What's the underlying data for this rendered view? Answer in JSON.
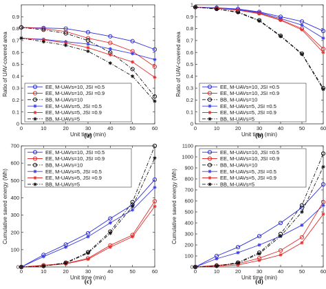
{
  "chart_data": [
    {
      "type": "line",
      "panel_label": "(a)",
      "xlabel": "Unit time (min)",
      "ylabel": "Ratio of UAV-covered area",
      "xlim": [
        0,
        60
      ],
      "ylim": [
        0,
        1
      ],
      "xticks": [
        "0",
        "10",
        "20",
        "30",
        "40",
        "50",
        "60"
      ],
      "yticks": [
        "0",
        "0.1",
        "0.2",
        "0.3",
        "0.4",
        "0.5",
        "0.6",
        "0.7",
        "0.8",
        "0.9"
      ],
      "ytick_values": [
        0,
        0.1,
        0.2,
        0.3,
        0.4,
        0.5,
        0.6,
        0.7,
        0.8,
        0.9
      ],
      "grid": false,
      "legend_position": "bottom-left",
      "x": [
        0,
        10,
        20,
        30,
        40,
        50,
        60
      ],
      "series": [
        {
          "name": "EE, M-UAVs=10, JSI =0.5",
          "values": [
            0.81,
            0.805,
            0.8,
            0.77,
            0.735,
            0.695,
            0.625
          ]
        },
        {
          "name": "EE, M-UAVs=10, JSI =0.9",
          "values": [
            0.81,
            0.8,
            0.775,
            0.72,
            0.68,
            0.61,
            0.48
          ]
        },
        {
          "name": "BB, M-UAVs=10",
          "values": [
            0.81,
            0.79,
            0.76,
            0.7,
            0.6,
            0.46,
            0.23
          ]
        },
        {
          "name": "EE, M-UAVs=5, JSI =0.5",
          "values": [
            0.72,
            0.71,
            0.69,
            0.67,
            0.63,
            0.59,
            0.54
          ]
        },
        {
          "name": "EE, M-UAVs=5, JSI =0.9",
          "values": [
            0.72,
            0.705,
            0.68,
            0.64,
            0.58,
            0.52,
            0.39
          ]
        },
        {
          "name": "BB, M-UAVs=5",
          "values": [
            0.72,
            0.69,
            0.66,
            0.61,
            0.51,
            0.4,
            0.19
          ]
        }
      ]
    },
    {
      "type": "line",
      "panel_label": "(b)",
      "xlabel": "Unit time (min)",
      "ylabel": "Ratio of UAV-covered area",
      "xlim": [
        0,
        60
      ],
      "ylim": [
        0,
        1
      ],
      "xticks": [
        "0",
        "10",
        "20",
        "30",
        "40",
        "50",
        "60"
      ],
      "yticks": [
        "0",
        "0.1",
        "0.2",
        "0.3",
        "0.4",
        "0.5",
        "0.6",
        "0.7",
        "0.8",
        "0.9",
        "1"
      ],
      "ytick_values": [
        0,
        0.1,
        0.2,
        0.3,
        0.4,
        0.5,
        0.6,
        0.7,
        0.8,
        0.9,
        1
      ],
      "grid": false,
      "legend_position": "bottom-left",
      "x": [
        0,
        10,
        20,
        30,
        40,
        50,
        60
      ],
      "series": [
        {
          "name": "EE, M-UAVs=10, JSI =0.5",
          "values": [
            0.98,
            0.975,
            0.965,
            0.94,
            0.9,
            0.86,
            0.78
          ]
        },
        {
          "name": "EE, M-UAVs=10, JSI =0.9",
          "values": [
            0.98,
            0.97,
            0.955,
            0.93,
            0.875,
            0.8,
            0.63
          ]
        },
        {
          "name": "BB, M-UAVs=10",
          "values": [
            0.98,
            0.965,
            0.94,
            0.87,
            0.74,
            0.59,
            0.3
          ]
        },
        {
          "name": "EE, M-UAVs=5, JSI =0.5",
          "values": [
            0.98,
            0.975,
            0.96,
            0.935,
            0.885,
            0.83,
            0.72
          ]
        },
        {
          "name": "EE, M-UAVs=5, JSI =0.9",
          "values": [
            0.98,
            0.97,
            0.955,
            0.925,
            0.87,
            0.79,
            0.6
          ]
        },
        {
          "name": "BB, M-UAVs=5",
          "values": [
            0.98,
            0.965,
            0.935,
            0.865,
            0.735,
            0.585,
            0.29
          ]
        }
      ]
    },
    {
      "type": "line",
      "panel_label": "(c)",
      "xlabel": "Unit time (min)",
      "ylabel": "Cumulative saved energy (Wh)",
      "xlim": [
        0,
        60
      ],
      "ylim": [
        0,
        700
      ],
      "xticks": [
        "0",
        "10",
        "20",
        "30",
        "40",
        "50",
        "60"
      ],
      "yticks": [
        "0",
        "100",
        "200",
        "300",
        "400",
        "500",
        "600",
        "700"
      ],
      "ytick_values": [
        0,
        100,
        200,
        300,
        400,
        500,
        600,
        700
      ],
      "grid": false,
      "legend_position": "top-left",
      "x": [
        0,
        10,
        20,
        30,
        40,
        50,
        60
      ],
      "series": [
        {
          "name": "EE, M-UAVs=10, JSI =0.5",
          "values": [
            0,
            70,
            130,
            195,
            280,
            360,
            505
          ]
        },
        {
          "name": "EE, M-UAVs=10, JSI =0.9",
          "values": [
            0,
            10,
            20,
            50,
            125,
            185,
            380
          ]
        },
        {
          "name": "BB, M-UAVs=10",
          "values": [
            0,
            5,
            25,
            85,
            205,
            375,
            700
          ]
        },
        {
          "name": "EE, M-UAVs=5, JSI =0.5",
          "values": [
            0,
            60,
            115,
            175,
            255,
            330,
            460
          ]
        },
        {
          "name": "EE, M-UAVs=5, JSI =0.9",
          "values": [
            0,
            8,
            18,
            45,
            115,
            175,
            350
          ]
        },
        {
          "name": "BB, M-UAVs=5",
          "values": [
            0,
            5,
            22,
            80,
            195,
            350,
            630
          ]
        }
      ]
    },
    {
      "type": "line",
      "panel_label": "(d)",
      "xlabel": "Unit time (min)",
      "ylabel": "Cumulative saved energy (Wh)",
      "xlim": [
        0,
        60
      ],
      "ylim": [
        0,
        1100
      ],
      "xticks": [
        "0",
        "10",
        "20",
        "30",
        "40",
        "50",
        "60"
      ],
      "yticks": [
        "0",
        "100",
        "200",
        "300",
        "400",
        "500",
        "600",
        "700",
        "800",
        "900",
        "1000",
        "1100"
      ],
      "ytick_values": [
        0,
        100,
        200,
        300,
        400,
        500,
        600,
        700,
        800,
        900,
        1000,
        1100
      ],
      "grid": false,
      "legend_position": "top-left",
      "x": [
        0,
        10,
        20,
        30,
        40,
        50,
        60
      ],
      "series": [
        {
          "name": "EE, M-UAVs=10, JSI =0.5",
          "values": [
            0,
            100,
            180,
            280,
            400,
            540,
            750
          ]
        },
        {
          "name": "EE, M-UAVs=10, JSI =0.9",
          "values": [
            0,
            15,
            30,
            80,
            150,
            270,
            590
          ]
        },
        {
          "name": "BB, M-UAVs=10",
          "values": [
            0,
            10,
            40,
            130,
            300,
            560,
            1030
          ]
        },
        {
          "name": "EE, M-UAVs=5, JSI =0.5",
          "values": [
            0,
            75,
            130,
            200,
            280,
            380,
            560
          ]
        },
        {
          "name": "EE, M-UAVs=5, JSI =0.9",
          "values": [
            0,
            8,
            18,
            60,
            110,
            220,
            480
          ]
        },
        {
          "name": "BB, M-UAVs=5",
          "values": [
            0,
            8,
            35,
            120,
            280,
            500,
            910
          ]
        }
      ]
    }
  ],
  "series_styles": [
    {
      "color": "#2b2bd8",
      "marker": "circle",
      "dash": "solid"
    },
    {
      "color": "#e0302e",
      "marker": "circle",
      "dash": "solid"
    },
    {
      "color": "#111111",
      "marker": "circle",
      "dash": "dashdot"
    },
    {
      "color": "#3a3ae6",
      "marker": "star",
      "dash": "solid"
    },
    {
      "color": "#e0302e",
      "marker": "star",
      "dash": "solid"
    },
    {
      "color": "#111111",
      "marker": "star",
      "dash": "dashdot"
    }
  ]
}
